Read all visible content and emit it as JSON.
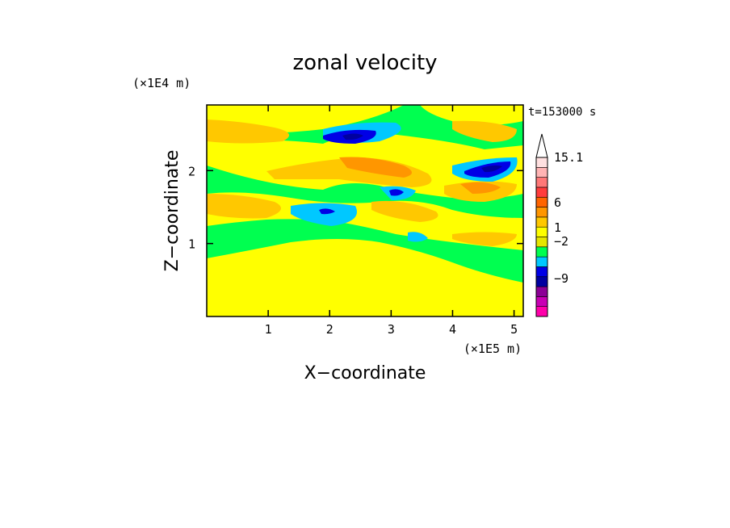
{
  "chart_data": {
    "type": "heatmap",
    "title": "zonal velocity",
    "xlabel": "X−coordinate",
    "ylabel": "Z−coordinate",
    "x_unit_label": "(×1E5 m)",
    "y_unit_label": "(×1E4 m)",
    "time_label": "t=153000 s",
    "xlim": [
      0,
      5.15
    ],
    "ylim": [
      0,
      2.9
    ],
    "x_ticks": [
      1,
      2,
      3,
      4,
      5
    ],
    "y_ticks": [
      1,
      2
    ],
    "colorbar": {
      "labels": [
        "15.1",
        "6",
        "1",
        "−2",
        "−9"
      ],
      "colors": [
        "#ff00aa",
        "#c800b4",
        "#8c0096",
        "#0000a0",
        "#0000e6",
        "#00c8ff",
        "#00ff50",
        "#e6e600",
        "#ffff00",
        "#ffc800",
        "#ff9600",
        "#ff6400",
        "#ff3c3c",
        "#ff7878",
        "#ffb4b4",
        "#ffe0e0"
      ]
    },
    "field_levels": {
      "background": "#00ff50",
      "yellow": "#ffff00",
      "orange_light": "#ffc800",
      "orange": "#ff9600",
      "cyan": "#00c8ff",
      "blue": "#0000e6",
      "navy": "#0000a0"
    }
  }
}
